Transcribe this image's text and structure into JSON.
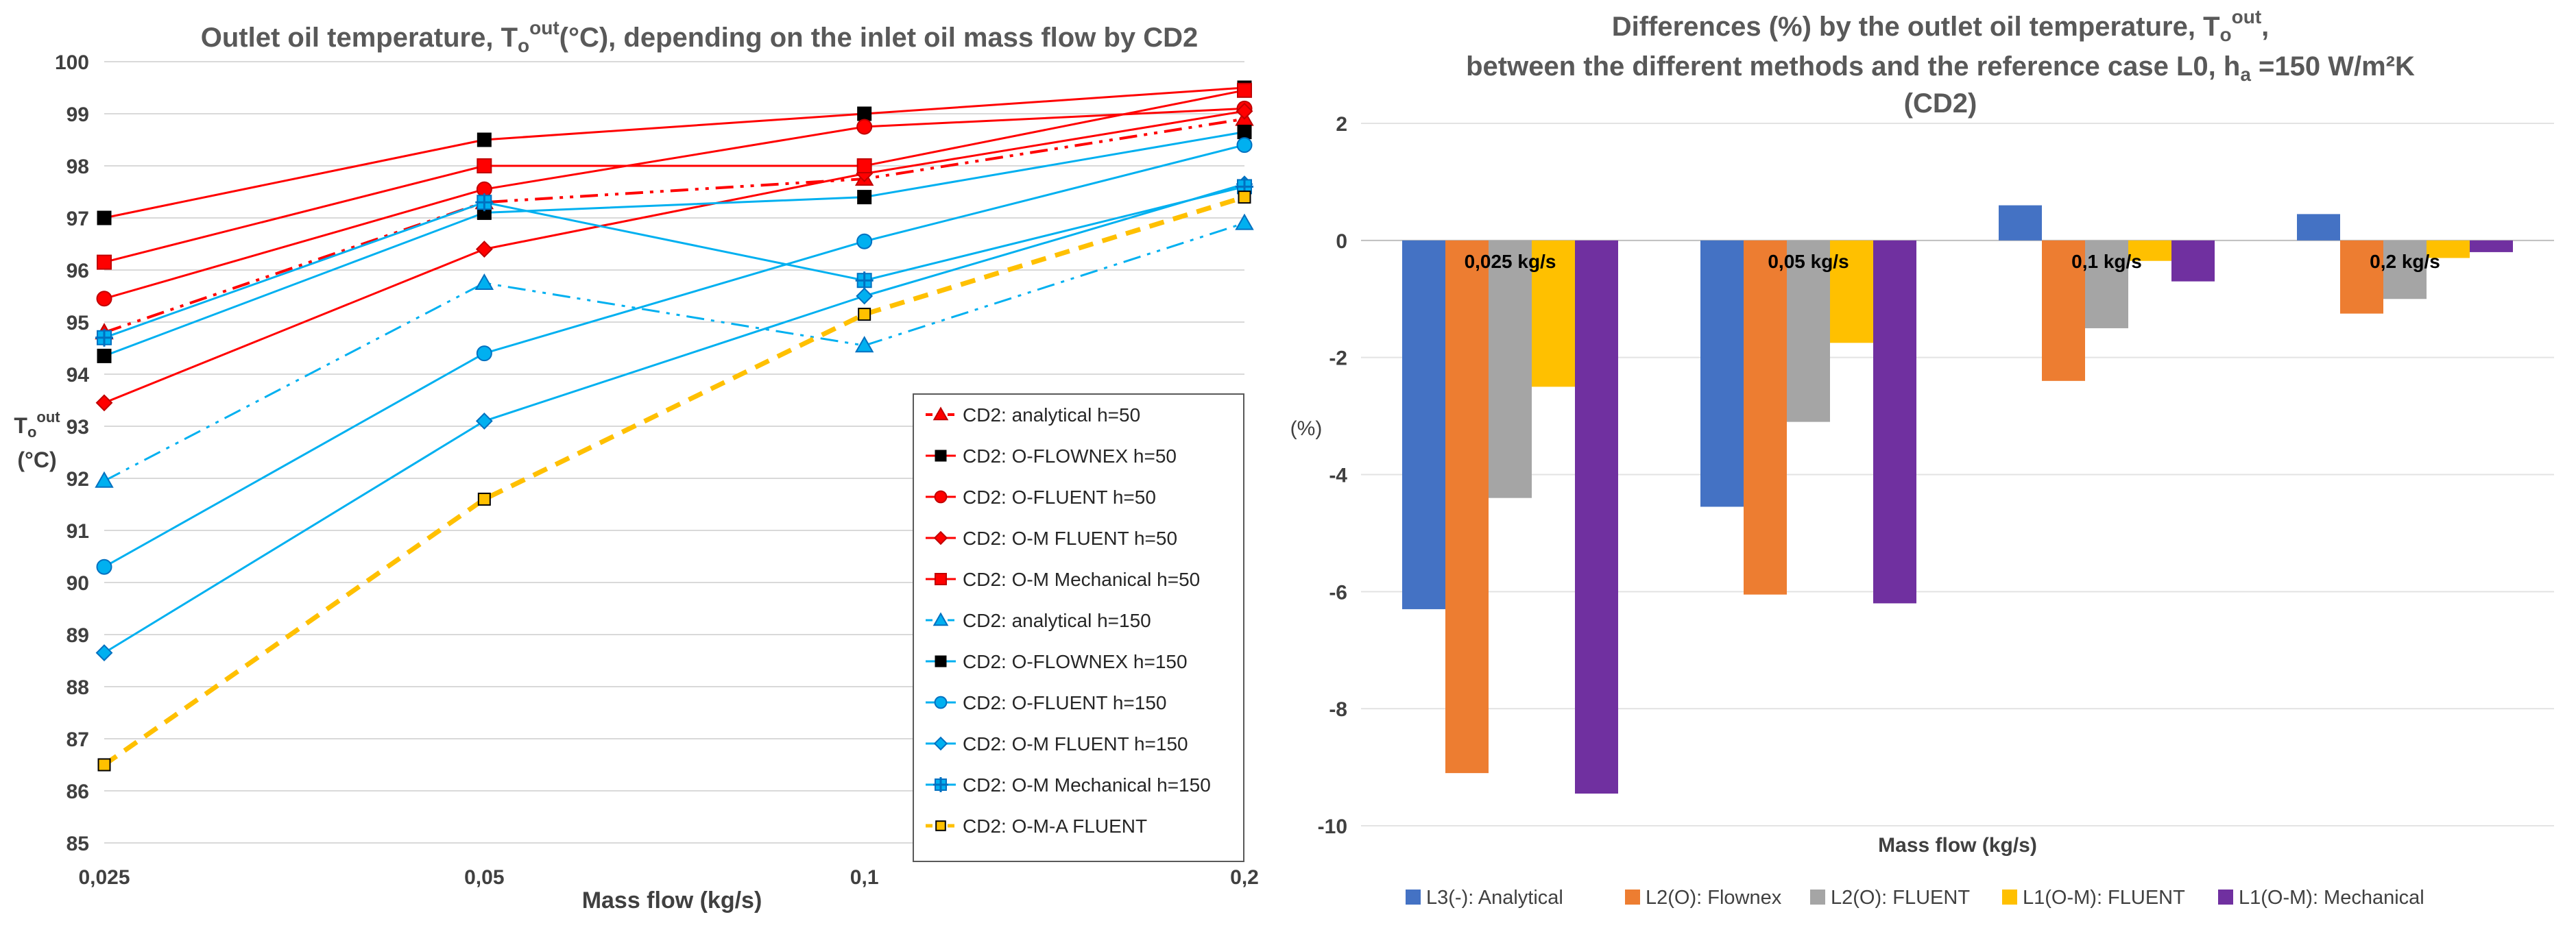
{
  "chart_data": [
    {
      "type": "line",
      "title_parts": [
        "Outlet oil temperature, T",
        "o",
        "out",
        "(°C), depending on the inlet oil mass flow by CD2"
      ],
      "xlabel": "Mass flow (kg/s)",
      "ylabel_parts": [
        "T",
        "o",
        "out",
        "(°C)"
      ],
      "categories": [
        "0,025",
        "0,05",
        "0,1",
        "0,2"
      ],
      "ylim": [
        85,
        100
      ],
      "yticks": [
        85,
        86,
        87,
        88,
        89,
        90,
        91,
        92,
        93,
        94,
        95,
        96,
        97,
        98,
        99,
        100
      ],
      "grid": true,
      "legend_position": "bottom-right (inside plot)",
      "series": [
        {
          "name": "CD2: analytical h=50",
          "values": [
            94.8,
            97.3,
            97.75,
            98.9
          ],
          "color": "#FF0000",
          "marker": "triangle",
          "dash": "dashdotdot",
          "line_width": 4
        },
        {
          "name": "CD2: O-FLOWNEX h=50",
          "values": [
            97.0,
            98.5,
            99.0,
            99.5
          ],
          "color": "#FF0000",
          "marker": "square-black",
          "dash": "solid",
          "line_width": 3
        },
        {
          "name": "CD2: O-FLUENT h=50",
          "values": [
            95.45,
            97.55,
            98.75,
            99.1
          ],
          "color": "#FF0000",
          "marker": "circle",
          "dash": "solid",
          "line_width": 3
        },
        {
          "name": "CD2: O-M FLUENT h=50",
          "values": [
            93.45,
            96.4,
            97.85,
            99.05
          ],
          "color": "#FF0000",
          "marker": "diamond",
          "dash": "solid",
          "line_width": 3
        },
        {
          "name": "CD2: O-M Mechanical h=50",
          "values": [
            96.15,
            98.0,
            98.0,
            99.45
          ],
          "color": "#FF0000",
          "marker": "square",
          "dash": "solid",
          "line_width": 3
        },
        {
          "name": "CD2: analytical h=150",
          "values": [
            91.95,
            95.75,
            94.55,
            96.9
          ],
          "color": "#00B0F0",
          "marker": "triangle",
          "dash": "dashdotdot",
          "line_width": 3
        },
        {
          "name": "CD2: O-FLOWNEX h=150",
          "values": [
            94.35,
            97.1,
            97.4,
            98.65
          ],
          "color": "#00B0F0",
          "marker": "square-black",
          "dash": "solid",
          "line_width": 3
        },
        {
          "name": "CD2: O-FLUENT h=150",
          "values": [
            90.3,
            94.4,
            96.55,
            98.4
          ],
          "color": "#00B0F0",
          "marker": "circle",
          "dash": "solid",
          "line_width": 3
        },
        {
          "name": "CD2: O-M FLUENT h=150",
          "values": [
            88.65,
            93.1,
            95.5,
            97.65
          ],
          "color": "#00B0F0",
          "marker": "diamond",
          "dash": "solid",
          "line_width": 3
        },
        {
          "name": "CD2: O-M Mechanical h=150",
          "values": [
            94.7,
            97.3,
            95.8,
            97.6
          ],
          "color": "#00B0F0",
          "marker": "plus-square",
          "dash": "solid",
          "line_width": 3
        },
        {
          "name": "CD2: O-M-A FLUENT",
          "values": [
            86.5,
            91.6,
            95.15,
            97.4
          ],
          "color": "#FFC000",
          "marker": "square-yellow",
          "dash": "dashed",
          "line_width": 7
        }
      ]
    },
    {
      "type": "bar",
      "title_lines": [
        [
          "Differences (%) by the outlet oil temperature, T",
          "o",
          "out",
          ","
        ],
        [
          "between the different methods and the reference case L0, h",
          "a",
          "",
          " =150 W/m²K"
        ],
        [
          "(CD2)"
        ]
      ],
      "xlabel": "Mass flow (kg/s)",
      "ylabel": "(%)",
      "categories": [
        "0,025 kg/s",
        "0,05 kg/s",
        "0,1 kg/s",
        "0,2 kg/s"
      ],
      "ylim": [
        -10,
        2
      ],
      "yticks": [
        -10,
        -8,
        -6,
        -4,
        -2,
        0,
        2
      ],
      "grid": true,
      "legend_position": "bottom",
      "series": [
        {
          "name": "L3(-): Analytical",
          "values": [
            -6.3,
            -4.55,
            0.6,
            0.45
          ],
          "color": "#4472C4"
        },
        {
          "name": "L2(O): Flownex",
          "values": [
            -9.1,
            -6.05,
            -2.4,
            -1.25
          ],
          "color": "#ED7D31"
        },
        {
          "name": "L2(O): FLUENT",
          "values": [
            -4.4,
            -3.1,
            -1.5,
            -1.0
          ],
          "color": "#A5A5A5"
        },
        {
          "name": "L1(O-M): FLUENT",
          "values": [
            -2.5,
            -1.75,
            -0.35,
            -0.3
          ],
          "color": "#FFC000"
        },
        {
          "name": "L1(O-M): Mechanical",
          "values": [
            -9.45,
            -6.2,
            -0.7,
            -0.2
          ],
          "color": "#7030A0"
        }
      ]
    }
  ]
}
